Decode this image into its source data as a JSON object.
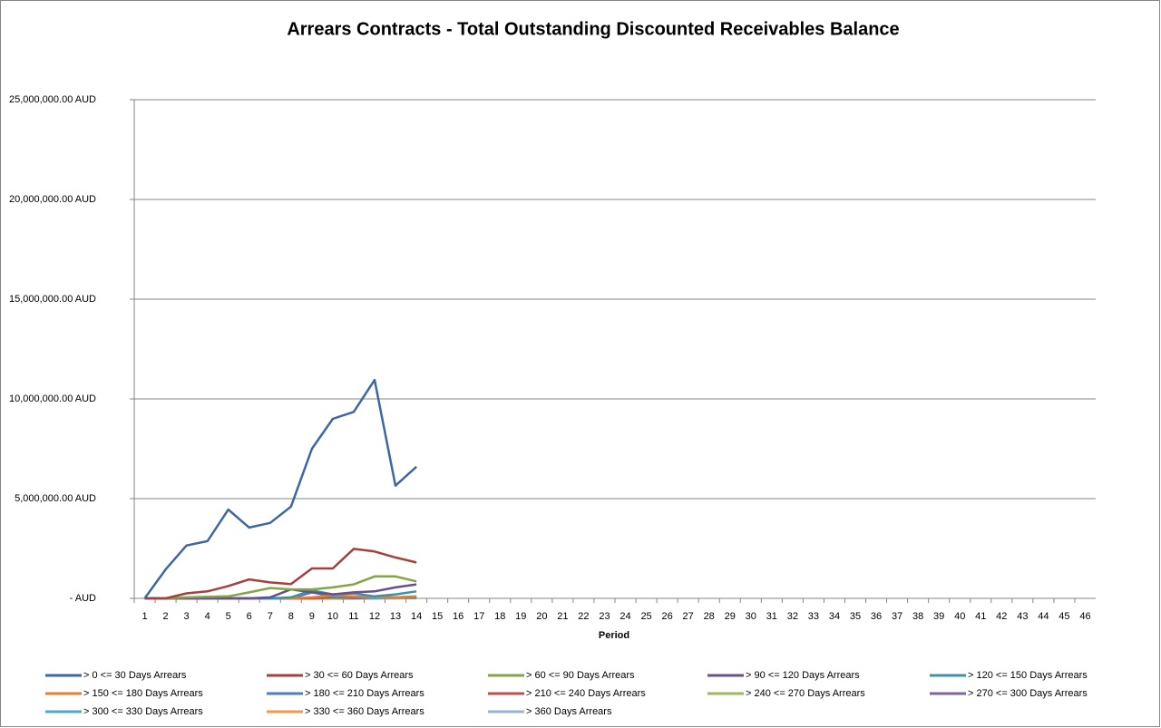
{
  "chart_data": {
    "type": "line",
    "title": "Arrears Contracts - Total Outstanding Discounted Receivables Balance",
    "x_label": "Period",
    "categories": [
      1,
      2,
      3,
      4,
      5,
      6,
      7,
      8,
      9,
      10,
      11,
      12,
      13,
      14,
      15,
      16,
      17,
      18,
      19,
      20,
      21,
      22,
      23,
      24,
      25,
      26,
      27,
      28,
      29,
      30,
      31,
      32,
      33,
      34,
      35,
      36,
      37,
      38,
      39,
      40,
      41,
      42,
      43,
      44,
      45,
      46
    ],
    "ylim": [
      0,
      25000000
    ],
    "yticks": [
      {
        "value": 0,
        "label": "-   AUD"
      },
      {
        "value": 5000000,
        "label": "5,000,000.00 AUD"
      },
      {
        "value": 10000000,
        "label": "10,000,000.00 AUD"
      },
      {
        "value": 15000000,
        "label": "15,000,000.00 AUD"
      },
      {
        "value": 20000000,
        "label": "20,000,000.00 AUD"
      },
      {
        "value": 25000000,
        "label": "25,000,000.00 AUD"
      }
    ],
    "grid": true,
    "legend": "bottom",
    "series": [
      {
        "name": "> 0 <= 30 Days Arrears",
        "color": "#3D67A3",
        "values": [
          0,
          1450000,
          2650000,
          2870000,
          4450000,
          3550000,
          3780000,
          4600000,
          7500000,
          9000000,
          9350000,
          10950000,
          5650000,
          6600000,
          null,
          null,
          null,
          null,
          null,
          null,
          null,
          null,
          null,
          null,
          null,
          null,
          null,
          null,
          null,
          null,
          null,
          null,
          null,
          null,
          null,
          null,
          null,
          null,
          null,
          null,
          null,
          null,
          null,
          null,
          null,
          null
        ]
      },
      {
        "name": "> 30 <= 60 Days Arrears",
        "color": "#A5403D",
        "values": [
          0,
          0,
          250000,
          350000,
          620000,
          950000,
          800000,
          720000,
          1500000,
          1500000,
          2480000,
          2350000,
          2050000,
          1800000,
          null,
          null,
          null,
          null,
          null,
          null,
          null,
          null,
          null,
          null,
          null,
          null,
          null,
          null,
          null,
          null,
          null,
          null,
          null,
          null,
          null,
          null,
          null,
          null,
          null,
          null,
          null,
          null,
          null,
          null,
          null,
          null
        ]
      },
      {
        "name": "> 60 <= 90 Days Arrears",
        "color": "#83A447",
        "values": [
          0,
          0,
          50000,
          80000,
          100000,
          300000,
          520000,
          450000,
          450000,
          550000,
          700000,
          1100000,
          1100000,
          850000,
          null,
          null,
          null,
          null,
          null,
          null,
          null,
          null,
          null,
          null,
          null,
          null,
          null,
          null,
          null,
          null,
          null,
          null,
          null,
          null,
          null,
          null,
          null,
          null,
          null,
          null,
          null,
          null,
          null,
          null,
          null,
          null
        ]
      },
      {
        "name": "> 90 <= 120 Days Arrears",
        "color": "#6A4F8C",
        "values": [
          0,
          0,
          0,
          0,
          0,
          0,
          50000,
          450000,
          300000,
          200000,
          300000,
          350000,
          550000,
          700000,
          null,
          null,
          null,
          null,
          null,
          null,
          null,
          null,
          null,
          null,
          null,
          null,
          null,
          null,
          null,
          null,
          null,
          null,
          null,
          null,
          null,
          null,
          null,
          null,
          null,
          null,
          null,
          null,
          null,
          null,
          null,
          null
        ]
      },
      {
        "name": "> 120 <= 150 Days Arrears",
        "color": "#3A93AB",
        "values": [
          0,
          0,
          0,
          0,
          0,
          0,
          0,
          50000,
          400000,
          200000,
          250000,
          100000,
          200000,
          350000,
          null,
          null,
          null,
          null,
          null,
          null,
          null,
          null,
          null,
          null,
          null,
          null,
          null,
          null,
          null,
          null,
          null,
          null,
          null,
          null,
          null,
          null,
          null,
          null,
          null,
          null,
          null,
          null,
          null,
          null,
          null,
          null
        ]
      },
      {
        "name": "> 150 <= 180 Days Arrears",
        "color": "#DE8236",
        "values": [
          0,
          0,
          0,
          0,
          0,
          0,
          0,
          0,
          50000,
          150000,
          100000,
          50000,
          50000,
          100000,
          null,
          null,
          null,
          null,
          null,
          null,
          null,
          null,
          null,
          null,
          null,
          null,
          null,
          null,
          null,
          null,
          null,
          null,
          null,
          null,
          null,
          null,
          null,
          null,
          null,
          null,
          null,
          null,
          null,
          null,
          null,
          null
        ]
      },
      {
        "name": "> 180 <= 210 Days Arrears",
        "color": "#4A80BD",
        "values": [
          0,
          0,
          0,
          0,
          0,
          0,
          0,
          0,
          300000,
          100000,
          50000,
          50000,
          50000,
          50000,
          null,
          null,
          null,
          null,
          null,
          null,
          null,
          null,
          null,
          null,
          null,
          null,
          null,
          null,
          null,
          null,
          null,
          null,
          null,
          null,
          null,
          null,
          null,
          null,
          null,
          null,
          null,
          null,
          null,
          null,
          null,
          null
        ]
      },
      {
        "name": "> 210 <= 240 Days Arrears",
        "color": "#C04E4B",
        "values": [
          0,
          0,
          0,
          0,
          0,
          0,
          0,
          0,
          0,
          50000,
          50000,
          50000,
          50000,
          50000,
          null,
          null,
          null,
          null,
          null,
          null,
          null,
          null,
          null,
          null,
          null,
          null,
          null,
          null,
          null,
          null,
          null,
          null,
          null,
          null,
          null,
          null,
          null,
          null,
          null,
          null,
          null,
          null,
          null,
          null,
          null,
          null
        ]
      },
      {
        "name": "> 240 <= 270 Days Arrears",
        "color": "#9BBB59",
        "values": [
          0,
          0,
          0,
          0,
          0,
          0,
          0,
          0,
          0,
          0,
          50000,
          50000,
          50000,
          50000,
          null,
          null,
          null,
          null,
          null,
          null,
          null,
          null,
          null,
          null,
          null,
          null,
          null,
          null,
          null,
          null,
          null,
          null,
          null,
          null,
          null,
          null,
          null,
          null,
          null,
          null,
          null,
          null,
          null,
          null,
          null,
          null
        ]
      },
      {
        "name": "> 270 <= 300 Days Arrears",
        "color": "#8064A2",
        "values": [
          0,
          0,
          0,
          0,
          0,
          0,
          0,
          0,
          0,
          0,
          0,
          50000,
          50000,
          50000,
          null,
          null,
          null,
          null,
          null,
          null,
          null,
          null,
          null,
          null,
          null,
          null,
          null,
          null,
          null,
          null,
          null,
          null,
          null,
          null,
          null,
          null,
          null,
          null,
          null,
          null,
          null,
          null,
          null,
          null,
          null,
          null
        ]
      },
      {
        "name": "> 300 <= 330 Days Arrears",
        "color": "#4BACC6",
        "values": [
          0,
          0,
          0,
          0,
          0,
          0,
          0,
          0,
          0,
          0,
          0,
          0,
          30000,
          30000,
          null,
          null,
          null,
          null,
          null,
          null,
          null,
          null,
          null,
          null,
          null,
          null,
          null,
          null,
          null,
          null,
          null,
          null,
          null,
          null,
          null,
          null,
          null,
          null,
          null,
          null,
          null,
          null,
          null,
          null,
          null,
          null
        ]
      },
      {
        "name": "> 330 <= 360 Days Arrears",
        "color": "#F79646",
        "values": [
          0,
          0,
          0,
          0,
          0,
          0,
          0,
          0,
          0,
          0,
          0,
          0,
          0,
          30000,
          null,
          null,
          null,
          null,
          null,
          null,
          null,
          null,
          null,
          null,
          null,
          null,
          null,
          null,
          null,
          null,
          null,
          null,
          null,
          null,
          null,
          null,
          null,
          null,
          null,
          null,
          null,
          null,
          null,
          null,
          null,
          null
        ]
      },
      {
        "name": "> 360 Days Arrears",
        "color": "#95B3D7",
        "values": [
          0,
          0,
          0,
          0,
          0,
          0,
          0,
          0,
          0,
          0,
          0,
          0,
          0,
          0,
          null,
          null,
          null,
          null,
          null,
          null,
          null,
          null,
          null,
          null,
          null,
          null,
          null,
          null,
          null,
          null,
          null,
          null,
          null,
          null,
          null,
          null,
          null,
          null,
          null,
          null,
          null,
          null,
          null,
          null,
          null,
          null
        ]
      }
    ]
  }
}
